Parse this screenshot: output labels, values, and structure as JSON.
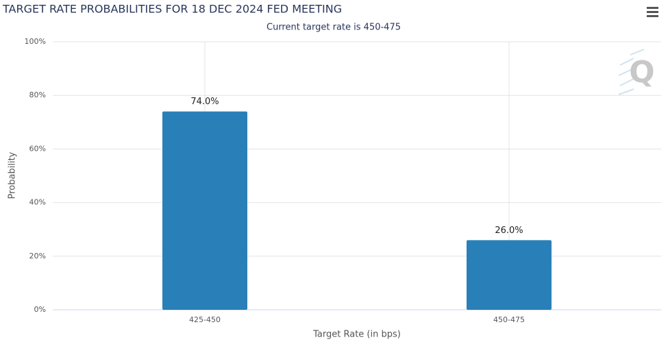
{
  "chart_data": {
    "type": "bar",
    "title": "TARGET RATE PROBABILITIES FOR 18 DEC 2024 FED MEETING",
    "subtitle": "Current target rate is 450-475",
    "x_label": "Target Rate (in bps)",
    "y_label": "Probability",
    "watermark": "Q",
    "categories": [
      "425-450",
      "450-475"
    ],
    "values": [
      74.0,
      26.0
    ],
    "value_labels": [
      "74.0%",
      "26.0%"
    ],
    "color": "#2980b9",
    "ylim": [
      0,
      100
    ],
    "yticks": [
      {
        "value": 0,
        "label": "0%"
      },
      {
        "value": 20,
        "label": "20%"
      },
      {
        "value": 40,
        "label": "40%"
      },
      {
        "value": 60,
        "label": "60%"
      },
      {
        "value": 80,
        "label": "80%"
      },
      {
        "value": 100,
        "label": "100%"
      }
    ],
    "grid": true
  }
}
